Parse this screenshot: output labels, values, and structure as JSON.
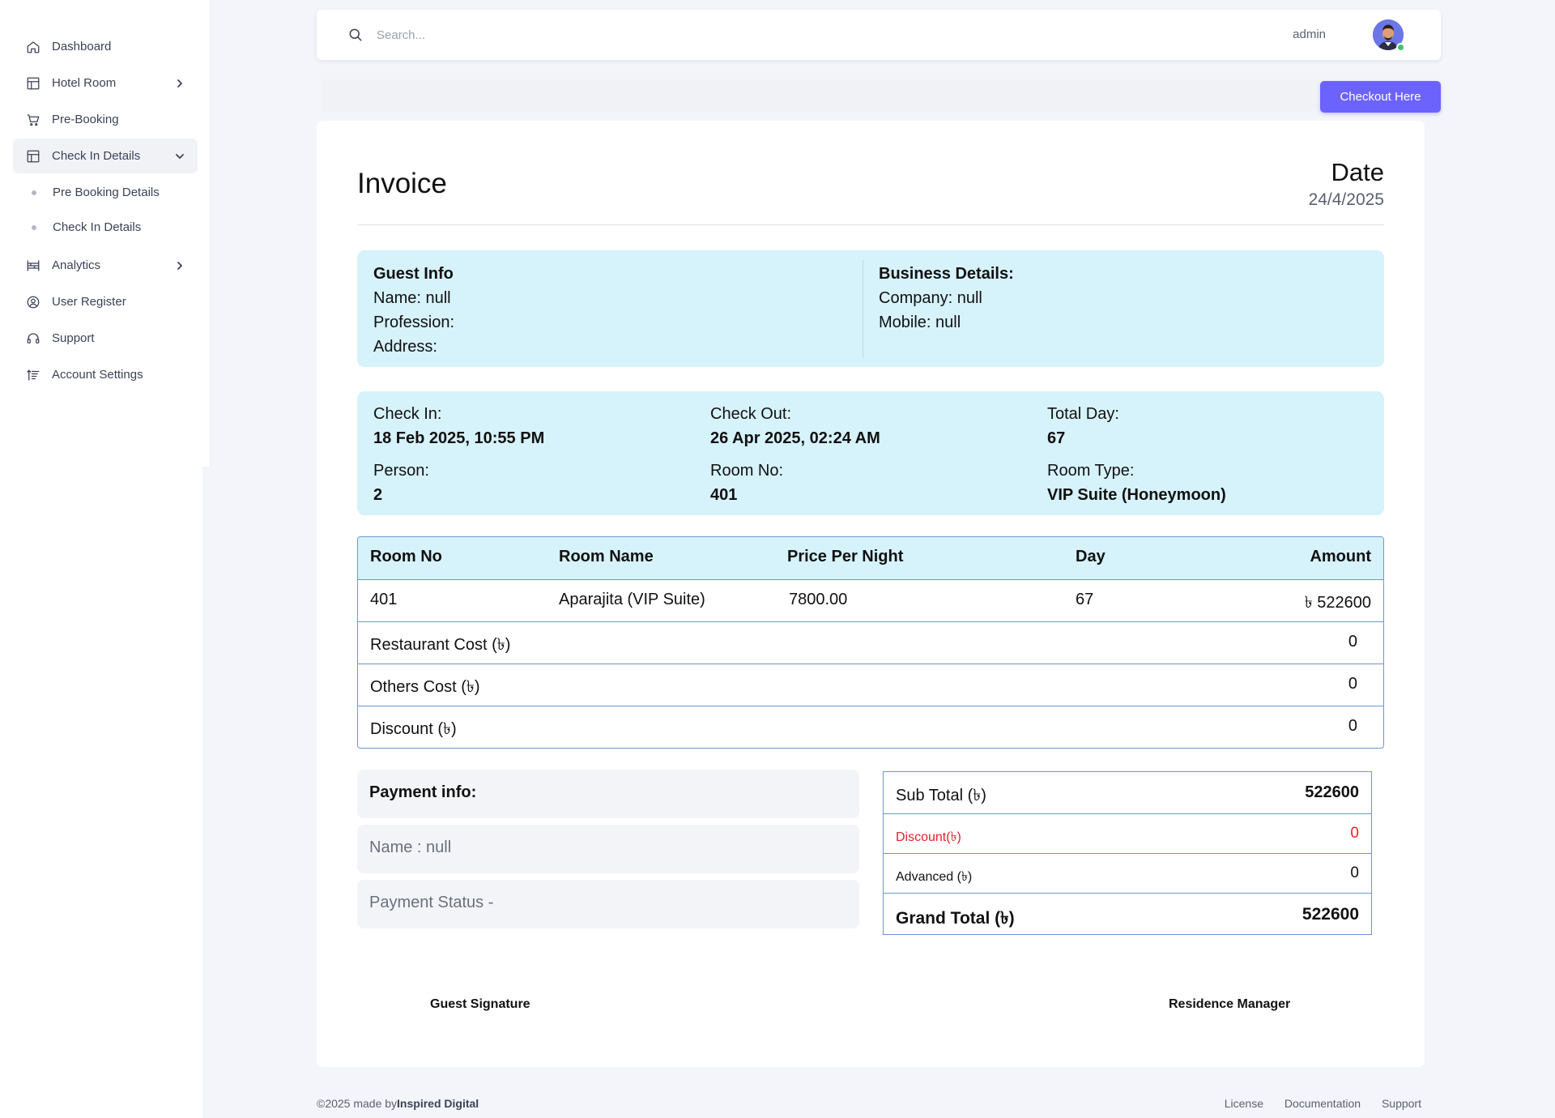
{
  "sidebar": {
    "items": [
      {
        "label": "Dashboard",
        "icon": "home-icon"
      },
      {
        "label": "Hotel Room",
        "icon": "layout-icon",
        "expandable": true
      },
      {
        "label": "Pre-Booking",
        "icon": "cart-icon"
      },
      {
        "label": "Check In Details",
        "icon": "layout-icon",
        "expanded": true,
        "active": true
      },
      {
        "label": "Analytics",
        "icon": "analytics-icon",
        "expandable": true
      },
      {
        "label": "User Register",
        "icon": "user-circle-icon"
      },
      {
        "label": "Support",
        "icon": "headset-icon"
      },
      {
        "label": "Account Settings",
        "icon": "sort-icon"
      }
    ],
    "subitems": [
      "Pre Booking Details",
      "Check In Details"
    ]
  },
  "header": {
    "search_placeholder": "Search...",
    "user_name": "admin"
  },
  "checkout_label": "Checkout Here",
  "invoice": {
    "title": "Invoice",
    "date_label": "Date",
    "date_value": "24/4/2025",
    "guest": {
      "heading": "Guest Info",
      "name": "Name: null",
      "profession": "Profession:",
      "address": "Address:"
    },
    "business": {
      "heading": "Business Details:",
      "company": "Company: null",
      "mobile": "Mobile: null"
    },
    "stay": {
      "check_in_label": "Check In:",
      "check_in": "18 Feb 2025, 10:55 PM",
      "check_out_label": "Check Out:",
      "check_out": "26 Apr 2025, 02:24 AM",
      "total_day_label": "Total Day:",
      "total_day": "67",
      "person_label": "Person:",
      "person": "2",
      "room_no_label": "Room No:",
      "room_no": "401",
      "room_type_label": "Room Type:",
      "room_type": "VIP Suite (Honeymoon)"
    },
    "table": {
      "headers": [
        "Room No",
        "Room Name",
        "Price Per Night",
        "Day",
        "Amount"
      ],
      "row": [
        "401",
        "Aparajita (VIP Suite)",
        "7800.00",
        "67",
        "৳ 522600"
      ],
      "restaurant_label": "Restaurant Cost (৳)",
      "restaurant": "0",
      "others_label": "Others Cost (৳)",
      "others": "0",
      "discount_label": "Discount (৳)",
      "discount": "0"
    },
    "payment": {
      "heading": "Payment info:",
      "name": "Name : null",
      "status": "Payment Status -"
    },
    "totals": {
      "subtotal_label": "Sub Total (৳)",
      "subtotal": "522600",
      "discount_label": "Discount(৳)",
      "discount": "0",
      "advanced_label": "Advanced (৳)",
      "advanced": "0",
      "grand_label": "Grand Total (৳)",
      "grand": "522600"
    },
    "signatures": {
      "guest": "Guest Signature",
      "manager": "Residence Manager"
    }
  },
  "footer": {
    "copyright": "©2025 made by",
    "brand": "Inspired Digital",
    "links": [
      "License",
      "Documentation",
      "Support"
    ]
  },
  "colors": {
    "accent": "#6c63ff",
    "panel": "#d6f2fb",
    "table_border": "#6c96d8",
    "discount": "#e8202a"
  }
}
